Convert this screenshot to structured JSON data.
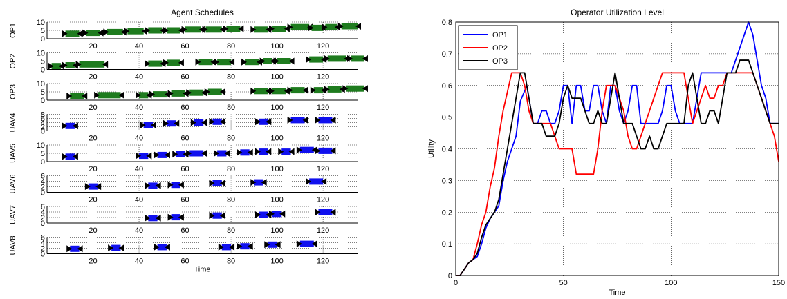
{
  "chart_data": [
    {
      "type": "gantt",
      "title": "Agent Schedules",
      "xlabel": "Time",
      "xlim": [
        0,
        135
      ],
      "xticks": [
        20,
        40,
        60,
        80,
        100,
        120
      ],
      "grid": true,
      "colors": {
        "operator": "#1e7b1e",
        "uav": "#1010ee",
        "marker": "#000000"
      },
      "rows": [
        {
          "name": "OP1",
          "yticks": [
            "10",
            "5",
            "0"
          ],
          "tasks": [
            [
              8,
              14,
              0.3
            ],
            [
              17,
              23,
              0.35
            ],
            [
              26,
              33,
              0.4
            ],
            [
              35,
              42,
              0.45
            ],
            [
              44,
              50,
              0.5
            ],
            [
              52,
              58,
              0.5
            ],
            [
              60,
              67,
              0.55
            ],
            [
              69,
              76,
              0.55
            ],
            [
              78,
              84,
              0.6
            ],
            [
              90,
              96,
              0.55
            ],
            [
              98,
              104,
              0.6
            ],
            [
              106,
              114,
              0.7
            ],
            [
              115,
              120,
              0.65
            ],
            [
              121,
              126,
              0.7
            ],
            [
              128,
              135,
              0.75
            ]
          ]
        },
        {
          "name": "OP2",
          "yticks": [
            "10",
            "5",
            "0"
          ],
          "tasks": [
            [
              2,
              6,
              0.2
            ],
            [
              8,
              12,
              0.25
            ],
            [
              14,
              25,
              0.3
            ],
            [
              44,
              50,
              0.35
            ],
            [
              52,
              58,
              0.4
            ],
            [
              66,
              72,
              0.45
            ],
            [
              74,
              80,
              0.45
            ],
            [
              86,
              92,
              0.45
            ],
            [
              94,
              98,
              0.5
            ],
            [
              100,
              106,
              0.5
            ],
            [
              114,
              120,
              0.6
            ],
            [
              122,
              130,
              0.65
            ],
            [
              132,
              138,
              0.65
            ]
          ]
        },
        {
          "name": "OP3",
          "yticks": [
            "10",
            "5",
            "0"
          ],
          "tasks": [
            [
              10,
              16,
              0.25
            ],
            [
              22,
              32,
              0.3
            ],
            [
              40,
              44,
              0.3
            ],
            [
              46,
              52,
              0.35
            ],
            [
              54,
              60,
              0.4
            ],
            [
              62,
              68,
              0.45
            ],
            [
              70,
              76,
              0.5
            ],
            [
              90,
              96,
              0.55
            ],
            [
              98,
              104,
              0.55
            ],
            [
              106,
              112,
              0.6
            ],
            [
              116,
              120,
              0.6
            ],
            [
              122,
              128,
              0.65
            ],
            [
              130,
              138,
              0.7
            ]
          ]
        },
        {
          "name": "UAV4",
          "yticks": [
            "8",
            "6",
            "4",
            "2",
            "0"
          ],
          "tasks": [
            [
              8,
              12,
              0.3
            ],
            [
              42,
              46,
              0.35
            ],
            [
              52,
              56,
              0.45
            ],
            [
              64,
              68,
              0.5
            ],
            [
              72,
              76,
              0.55
            ],
            [
              92,
              96,
              0.55
            ],
            [
              106,
              112,
              0.65
            ],
            [
              118,
              124,
              0.65
            ]
          ]
        },
        {
          "name": "UAV5",
          "yticks": [
            "10",
            "5",
            "0"
          ],
          "tasks": [
            [
              8,
              12,
              0.3
            ],
            [
              40,
              44,
              0.35
            ],
            [
              48,
              52,
              0.4
            ],
            [
              56,
              60,
              0.45
            ],
            [
              62,
              68,
              0.5
            ],
            [
              74,
              78,
              0.5
            ],
            [
              84,
              88,
              0.55
            ],
            [
              92,
              96,
              0.6
            ],
            [
              102,
              106,
              0.6
            ],
            [
              110,
              116,
              0.7
            ],
            [
              118,
              124,
              0.65
            ]
          ]
        },
        {
          "name": "UAV6",
          "yticks": [
            "6",
            "4",
            "2",
            "0"
          ],
          "tasks": [
            [
              18,
              22,
              0.35
            ],
            [
              44,
              48,
              0.4
            ],
            [
              54,
              58,
              0.45
            ],
            [
              72,
              76,
              0.55
            ],
            [
              90,
              94,
              0.6
            ],
            [
              114,
              120,
              0.65
            ]
          ]
        },
        {
          "name": "UAV7",
          "yticks": [
            "6",
            "4",
            "2",
            "0"
          ],
          "tasks": [
            [
              44,
              48,
              0.3
            ],
            [
              54,
              58,
              0.35
            ],
            [
              72,
              76,
              0.45
            ],
            [
              92,
              96,
              0.5
            ],
            [
              98,
              102,
              0.55
            ],
            [
              118,
              124,
              0.65
            ]
          ]
        },
        {
          "name": "UAV8",
          "yticks": [
            "6",
            "4",
            "2",
            "0"
          ],
          "tasks": [
            [
              10,
              14,
              0.3
            ],
            [
              28,
              32,
              0.35
            ],
            [
              48,
              52,
              0.4
            ],
            [
              76,
              80,
              0.4
            ],
            [
              84,
              88,
              0.45
            ],
            [
              96,
              100,
              0.55
            ],
            [
              110,
              116,
              0.6
            ]
          ]
        }
      ]
    },
    {
      "type": "line",
      "title": "Operator Utilization Level",
      "xlabel": "Time",
      "ylabel": "Utility",
      "xlim": [
        0,
        150
      ],
      "ylim": [
        0,
        0.8
      ],
      "xticks": [
        0,
        50,
        100,
        150
      ],
      "yticks": [
        0,
        0.1,
        0.2,
        0.3,
        0.4,
        0.5,
        0.6,
        0.7,
        0.8
      ],
      "grid": true,
      "legend": "top-left",
      "series": [
        {
          "name": "OP1",
          "color": "#0000ff",
          "x": [
            0,
            2,
            4,
            6,
            8,
            10,
            12,
            14,
            16,
            18,
            20,
            22,
            24,
            26,
            28,
            30,
            33,
            36,
            38,
            40,
            42,
            44,
            46,
            48,
            50,
            52,
            54,
            56,
            58,
            60,
            62,
            64,
            66,
            68,
            70,
            72,
            74,
            76,
            78,
            80,
            82,
            84,
            86,
            88,
            90,
            94,
            96,
            98,
            100,
            102,
            104,
            106,
            108,
            110,
            112,
            114,
            116,
            118,
            120,
            122,
            124,
            126,
            128,
            130,
            132,
            134,
            136,
            138,
            140,
            142,
            144,
            146,
            148,
            150
          ],
          "y": [
            0,
            0,
            0.02,
            0.04,
            0.05,
            0.06,
            0.1,
            0.15,
            0.18,
            0.2,
            0.22,
            0.3,
            0.36,
            0.4,
            0.44,
            0.55,
            0.6,
            0.48,
            0.48,
            0.52,
            0.52,
            0.48,
            0.48,
            0.52,
            0.6,
            0.6,
            0.48,
            0.6,
            0.6,
            0.52,
            0.52,
            0.6,
            0.6,
            0.52,
            0.48,
            0.6,
            0.6,
            0.52,
            0.48,
            0.52,
            0.6,
            0.6,
            0.48,
            0.48,
            0.48,
            0.48,
            0.52,
            0.6,
            0.6,
            0.52,
            0.48,
            0.48,
            0.48,
            0.48,
            0.56,
            0.64,
            0.64,
            0.64,
            0.64,
            0.64,
            0.64,
            0.64,
            0.64,
            0.68,
            0.72,
            0.76,
            0.8,
            0.76,
            0.68,
            0.6,
            0.56,
            0.48,
            0.48,
            0.48
          ]
        },
        {
          "name": "OP2",
          "color": "#ff0000",
          "x": [
            0,
            2,
            4,
            6,
            8,
            10,
            12,
            14,
            16,
            18,
            20,
            22,
            24,
            26,
            28,
            30,
            32,
            34,
            36,
            38,
            40,
            42,
            44,
            46,
            48,
            50,
            52,
            54,
            56,
            58,
            60,
            62,
            64,
            66,
            68,
            70,
            72,
            74,
            76,
            78,
            80,
            82,
            84,
            86,
            88,
            90,
            92,
            94,
            96,
            98,
            100,
            102,
            104,
            106,
            108,
            110,
            112,
            114,
            116,
            118,
            120,
            122,
            124,
            126,
            128,
            130,
            132,
            134,
            136,
            138,
            140,
            142,
            144,
            146,
            148,
            150
          ],
          "y": [
            0,
            0,
            0.02,
            0.04,
            0.05,
            0.1,
            0.16,
            0.2,
            0.28,
            0.34,
            0.44,
            0.52,
            0.58,
            0.64,
            0.64,
            0.64,
            0.6,
            0.52,
            0.48,
            0.48,
            0.48,
            0.48,
            0.48,
            0.44,
            0.4,
            0.4,
            0.4,
            0.4,
            0.32,
            0.32,
            0.32,
            0.32,
            0.32,
            0.4,
            0.52,
            0.6,
            0.6,
            0.6,
            0.56,
            0.52,
            0.44,
            0.4,
            0.4,
            0.44,
            0.48,
            0.52,
            0.56,
            0.6,
            0.64,
            0.64,
            0.64,
            0.64,
            0.64,
            0.64,
            0.56,
            0.48,
            0.52,
            0.56,
            0.6,
            0.56,
            0.56,
            0.6,
            0.6,
            0.64,
            0.64,
            0.64,
            0.64,
            0.64,
            0.64,
            0.64,
            0.6,
            0.56,
            0.52,
            0.48,
            0.44,
            0.36
          ]
        },
        {
          "name": "OP3",
          "color": "#000000",
          "x": [
            0,
            2,
            4,
            6,
            8,
            10,
            12,
            14,
            16,
            18,
            20,
            22,
            24,
            26,
            28,
            30,
            32,
            34,
            36,
            38,
            40,
            42,
            44,
            46,
            48,
            50,
            52,
            54,
            56,
            58,
            60,
            62,
            64,
            66,
            68,
            70,
            72,
            74,
            76,
            78,
            80,
            82,
            84,
            86,
            88,
            90,
            92,
            94,
            96,
            98,
            100,
            102,
            104,
            106,
            108,
            110,
            112,
            114,
            116,
            118,
            120,
            122,
            124,
            126,
            128,
            130,
            132,
            134,
            136,
            138,
            140,
            142,
            144,
            146,
            148,
            150
          ],
          "y": [
            0,
            0,
            0.02,
            0.04,
            0.05,
            0.07,
            0.12,
            0.16,
            0.18,
            0.2,
            0.24,
            0.32,
            0.4,
            0.48,
            0.56,
            0.64,
            0.64,
            0.56,
            0.48,
            0.48,
            0.48,
            0.44,
            0.44,
            0.44,
            0.48,
            0.56,
            0.6,
            0.56,
            0.56,
            0.56,
            0.52,
            0.48,
            0.48,
            0.52,
            0.48,
            0.48,
            0.56,
            0.64,
            0.56,
            0.48,
            0.48,
            0.48,
            0.44,
            0.4,
            0.4,
            0.44,
            0.4,
            0.4,
            0.44,
            0.48,
            0.48,
            0.48,
            0.48,
            0.48,
            0.6,
            0.64,
            0.56,
            0.48,
            0.48,
            0.52,
            0.52,
            0.48,
            0.56,
            0.64,
            0.64,
            0.64,
            0.68,
            0.68,
            0.68,
            0.64,
            0.6,
            0.56,
            0.52,
            0.48,
            0.48,
            0.48
          ]
        }
      ]
    }
  ]
}
